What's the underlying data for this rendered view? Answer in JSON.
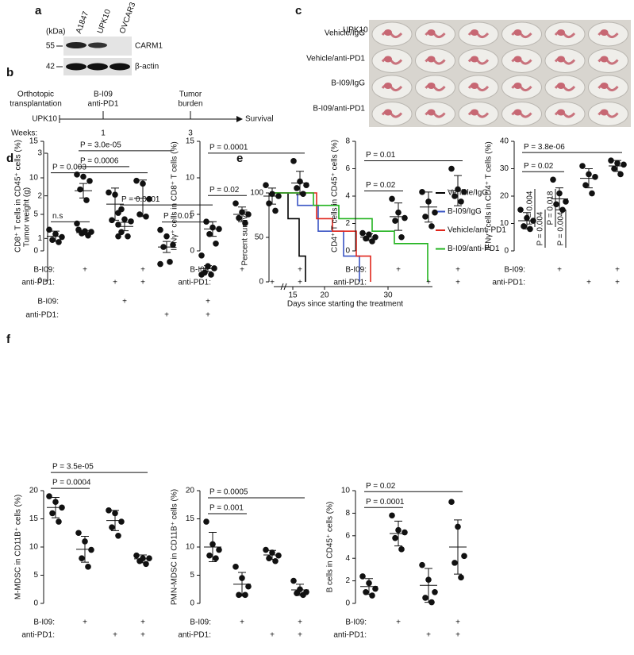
{
  "panel_labels": [
    "a",
    "b",
    "c",
    "d",
    "e",
    "f"
  ],
  "blot": {
    "unit": "(kDa)",
    "lanes": [
      "A1847",
      "UPK10",
      "OVCAR3"
    ],
    "markers": [
      "55",
      "42"
    ],
    "bands": [
      "CARM1",
      "β-actin"
    ]
  },
  "timeline": {
    "events": [
      [
        "Orthotopic",
        "transplantation"
      ],
      [
        "B-I09",
        "anti-PD1"
      ],
      [
        "Tumor",
        "burden"
      ]
    ],
    "cell_line": "UPK10",
    "end": "Survival",
    "weeks_label": "Weeks:",
    "weeks": [
      "1",
      "3"
    ]
  },
  "photo": {
    "title": "UPK10",
    "rows": [
      "Vehicle/IgG",
      "Vehicle/anti-PD1",
      "B-I09/IgG",
      "B-I09/anti-PD1"
    ]
  },
  "chart_data": [
    {
      "type": "dot",
      "y_label": "Tumor weight (g)",
      "ylim": [
        0,
        3
      ],
      "yticks": [
        0,
        1,
        2,
        3
      ],
      "values": [
        [
          2.5,
          2.45,
          2.35,
          2.15,
          1.9,
          1.35
        ],
        [
          1.6,
          1.45,
          1.4,
          1.15,
          1.05,
          1.05
        ],
        [
          1.2,
          1.05,
          0.85,
          0.8,
          0.45,
          0.4
        ],
        [
          0.6,
          0.35,
          0.3,
          0.2,
          0.15,
          0.15
        ]
      ],
      "mean": [
        2.12,
        1.28,
        0.8,
        0.29
      ],
      "error": [
        0.17,
        0.1,
        0.13,
        0.07
      ],
      "comparisons": [
        {
          "from": 2,
          "to": 3,
          "label": "P = 0.01"
        },
        {
          "from": 1,
          "to": 3,
          "label": "P = 0.0001"
        },
        {
          "from": 0,
          "to": 1,
          "label": "P = 0.0006"
        },
        {
          "from": 0,
          "to": 2,
          "label": "P = 3.0e-05"
        }
      ],
      "rows": [
        {
          "label": "B-I09:",
          "marks": [
            null,
            "+",
            null,
            "+"
          ]
        },
        {
          "label": "anti-PD1:",
          "marks": [
            null,
            null,
            "+",
            "+"
          ]
        }
      ]
    },
    {
      "type": "survival",
      "y_label": "Percent survival",
      "x_label": "Days since starting the treatment",
      "xlim": [
        12,
        37
      ],
      "xticks": [
        15,
        20,
        30
      ],
      "ylim": [
        0,
        100
      ],
      "yticks": [
        0,
        50,
        100
      ],
      "series": [
        {
          "name": "Vehicle/IgG",
          "color": "#000000",
          "x": [
            12,
            14.25,
            16,
            17
          ],
          "values": [
            100,
            71,
            29,
            0
          ]
        },
        {
          "name": "B-I09/IgG",
          "color": "#3a55c4",
          "x": [
            12,
            15.75,
            19,
            23,
            25.5
          ],
          "values": [
            100,
            86,
            57,
            29,
            0
          ]
        },
        {
          "name": "Vehicle/anti-PD1",
          "color": "#e0261c",
          "x": [
            12,
            18.75,
            21.25,
            25,
            27.25
          ],
          "values": [
            100,
            71,
            57,
            29,
            0
          ]
        },
        {
          "name": "B-I09/anti-PD1",
          "color": "#22b31f",
          "x": [
            12,
            18.25,
            22.25,
            27.5,
            31,
            36.25
          ],
          "values": [
            100,
            86,
            71,
            57,
            43,
            0
          ]
        }
      ],
      "p_values": [
        "P = 0.004",
        "P = 0.004",
        "P = 0.018",
        "P = 0.004"
      ]
    },
    {
      "type": "dot",
      "y_label": "CD8⁺ T cells in CD45⁺ cells (%)",
      "ylim": [
        0,
        15
      ],
      "yticks": [
        0,
        5,
        10,
        15
      ],
      "values": [
        [
          2.9,
          2.3,
          1.9,
          1.5,
          1.2
        ],
        [
          2.9,
          2.7,
          2.6,
          2.4,
          2.1
        ],
        [
          8.0,
          7.7,
          5.7,
          4.2,
          3.6
        ],
        [
          9.6,
          9.2,
          7.1,
          5.0,
          4.7
        ]
      ],
      "mean": [
        2.0,
        2.5,
        6.4,
        7.2
      ],
      "error": [
        0.7,
        0.3,
        2.2,
        2.5
      ],
      "comparisons": [
        {
          "from": 0,
          "to": 1,
          "label": "n.s"
        },
        {
          "from": 0,
          "to": 3,
          "label": "P = 0.003"
        }
      ],
      "rows": [
        {
          "label": "B-I09:",
          "marks": [
            null,
            "+",
            null,
            "+"
          ]
        },
        {
          "label": "anti-PD1:",
          "marks": [
            null,
            null,
            "+",
            "+"
          ]
        }
      ]
    },
    {
      "type": "dot",
      "y_label": "IFNγ⁺ cells in CD8⁺ T cells (%)",
      "ylim": [
        0,
        15
      ],
      "yticks": [
        0,
        5,
        10,
        15
      ],
      "values": [
        [
          4.0,
          3.2,
          3.0,
          2.3,
          1.0
        ],
        [
          6.5,
          5.3,
          5.0,
          4.5,
          3.8
        ],
        [
          9.0,
          7.8,
          7.5,
          6.5,
          5.5
        ],
        [
          12.3,
          9.5,
          9.0,
          8.6,
          7.8
        ]
      ],
      "mean": [
        3.0,
        5.0,
        7.5,
        9.3
      ],
      "error": [
        1.0,
        1.0,
        1.1,
        1.6
      ],
      "comparisons": [
        {
          "from": 0,
          "to": 1,
          "label": "P = 0.02"
        },
        {
          "from": 0,
          "to": 3,
          "label": "P = 0.0001"
        }
      ],
      "rows": [
        {
          "label": "B-I09:",
          "marks": [
            null,
            "+",
            null,
            "+"
          ]
        },
        {
          "label": "anti-PD1:",
          "marks": [
            null,
            null,
            "+",
            "+"
          ]
        }
      ]
    },
    {
      "type": "dot",
      "y_label": "CD4⁺ T cells in CD45⁺ cells (%)",
      "ylim": [
        0,
        8
      ],
      "yticks": [
        0,
        2,
        4,
        6,
        8
      ],
      "values": [
        [
          1.3,
          1.2,
          1.0,
          0.9,
          0.7
        ],
        [
          3.8,
          2.8,
          2.4,
          2.2,
          1.0
        ],
        [
          4.3,
          3.6,
          2.8,
          2.5,
          1.8
        ],
        [
          6.0,
          4.5,
          4.3,
          4.0,
          3.6
        ]
      ],
      "mean": [
        1.0,
        2.5,
        3.2,
        4.4
      ],
      "error": [
        0.25,
        1.0,
        1.1,
        1.1
      ],
      "comparisons": [
        {
          "from": 0,
          "to": 1,
          "label": "P = 0.02"
        },
        {
          "from": 0,
          "to": 3,
          "label": "P = 0.01"
        }
      ],
      "rows": [
        {
          "label": "B-I09:",
          "marks": [
            null,
            "+",
            null,
            "+"
          ]
        },
        {
          "label": "anti-PD1:",
          "marks": [
            null,
            null,
            "+",
            "+"
          ]
        }
      ]
    },
    {
      "type": "dot",
      "y_label": "IFNγ⁺ cells in CD4⁺ T cells (%)",
      "ylim": [
        0,
        40
      ],
      "yticks": [
        0,
        10,
        20,
        30,
        40
      ],
      "values": [
        [
          15,
          12,
          11,
          9,
          8
        ],
        [
          26,
          21,
          18,
          17,
          15
        ],
        [
          31,
          28,
          27,
          24,
          21
        ],
        [
          33,
          32,
          31.5,
          30,
          28
        ]
      ],
      "mean": [
        11,
        19,
        26.5,
        31
      ],
      "error": [
        3,
        4,
        3.5,
        2
      ],
      "comparisons": [
        {
          "from": 0,
          "to": 1,
          "label": "P = 0.02"
        },
        {
          "from": 0,
          "to": 3,
          "label": "P = 3.8e-06"
        }
      ],
      "rows": [
        {
          "label": "B-I09:",
          "marks": [
            null,
            "+",
            null,
            "+"
          ]
        },
        {
          "label": "anti-PD1:",
          "marks": [
            null,
            null,
            "+",
            "+"
          ]
        }
      ]
    },
    {
      "type": "dot",
      "y_label": "M-MDSC in CD11B⁺ cells (%)",
      "ylim": [
        0,
        20
      ],
      "yticks": [
        0,
        5,
        10,
        15,
        20
      ],
      "values": [
        [
          19,
          18,
          17,
          16,
          14.5
        ],
        [
          12.5,
          11,
          9.5,
          8,
          6.5
        ],
        [
          16.5,
          16,
          14.5,
          13.5,
          12
        ],
        [
          8.5,
          8,
          8,
          7.5,
          7
        ]
      ],
      "mean": [
        17,
        9.6,
        14.7,
        7.9
      ],
      "error": [
        1.8,
        2.3,
        1.8,
        0.7
      ],
      "comparisons": [
        {
          "from": 0,
          "to": 1,
          "label": "P = 0.0004"
        },
        {
          "from": 0,
          "to": 3,
          "label": "P = 3.5e-05"
        }
      ],
      "rows": [
        {
          "label": "B-I09:",
          "marks": [
            null,
            "+",
            null,
            "+"
          ]
        },
        {
          "label": "anti-PD1:",
          "marks": [
            null,
            null,
            "+",
            "+"
          ]
        }
      ]
    },
    {
      "type": "dot",
      "y_label": "PMN-MDSC in CD11B⁺ cells (%)",
      "ylim": [
        0,
        20
      ],
      "yticks": [
        0,
        5,
        10,
        15,
        20
      ],
      "values": [
        [
          14.5,
          10.5,
          9.5,
          8.5,
          8
        ],
        [
          6.5,
          4.5,
          3,
          1.5,
          1.5
        ],
        [
          9.5,
          9,
          8.5,
          8,
          7.5
        ],
        [
          4,
          2.5,
          2,
          1.8,
          1.5
        ]
      ],
      "mean": [
        10,
        3.4,
        8.6,
        2.4
      ],
      "error": [
        2.6,
        2.1,
        0.8,
        1.0
      ],
      "comparisons": [
        {
          "from": 0,
          "to": 1,
          "label": "P = 0.001"
        },
        {
          "from": 0,
          "to": 3,
          "label": "P = 0.0005"
        }
      ],
      "rows": [
        {
          "label": "B-I09:",
          "marks": [
            null,
            "+",
            null,
            "+"
          ]
        },
        {
          "label": "anti-PD1:",
          "marks": [
            null,
            null,
            "+",
            "+"
          ]
        }
      ]
    },
    {
      "type": "dot",
      "y_label": "B cells in CD45⁺ cells (%)",
      "ylim": [
        0,
        10
      ],
      "yticks": [
        0,
        2,
        4,
        6,
        8,
        10
      ],
      "values": [
        [
          2.4,
          1.8,
          1.3,
          1.0,
          0.7
        ],
        [
          7.8,
          6.5,
          6.3,
          5.8,
          4.8
        ],
        [
          3.4,
          2.1,
          1.0,
          0.5,
          0.1
        ],
        [
          9.0,
          6.8,
          4.2,
          3.6,
          2.3
        ]
      ],
      "mean": [
        1.5,
        6.2,
        1.6,
        5.0
      ],
      "error": [
        0.7,
        1.1,
        1.5,
        2.4
      ],
      "comparisons": [
        {
          "from": 0,
          "to": 1,
          "label": "P = 0.0001"
        },
        {
          "from": 0,
          "to": 3,
          "label": "P = 0.02"
        }
      ],
      "rows": [
        {
          "label": "B-I09:",
          "marks": [
            null,
            "+",
            null,
            "+"
          ]
        },
        {
          "label": "anti-PD1:",
          "marks": [
            null,
            null,
            "+",
            "+"
          ]
        }
      ]
    }
  ]
}
